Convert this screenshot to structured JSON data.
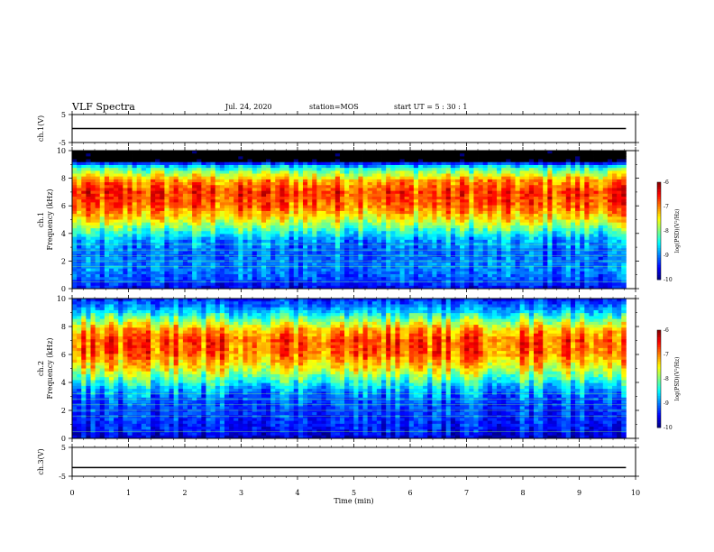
{
  "header": {
    "title": "VLF Spectra",
    "date": "Jul. 24, 2020",
    "station": "station=MOS",
    "start": "start UT =  5 : 30 : 1"
  },
  "chart_data": [
    {
      "type": "line",
      "name": "ch1-voltage",
      "ylabel": "ch.1(V)",
      "ylim": [
        -5,
        5
      ],
      "yticks": [
        "5",
        "-5"
      ],
      "x": [
        0,
        9.83
      ],
      "values": [
        0,
        0
      ],
      "xlim": [
        0,
        10
      ]
    },
    {
      "type": "heatmap",
      "name": "ch1-spectrogram",
      "ylabel": "ch.1\nFrequency (kHz)",
      "ylim": [
        0,
        10
      ],
      "yticks": [
        "0",
        "2",
        "4",
        "6",
        "8",
        "10"
      ],
      "xlim": [
        0,
        10
      ],
      "data_end_min": 9.83,
      "colorbar": {
        "label": "log(PSD)(V²/Hz)",
        "ticks": [
          "-6",
          "-7",
          "-8",
          "-9",
          "-10"
        ],
        "range": [
          -10,
          -6
        ]
      },
      "band_profile": [
        {
          "f": 0.0,
          "v": -9.6
        },
        {
          "f": 0.6,
          "v": -9.2
        },
        {
          "f": 1.5,
          "v": -9.0
        },
        {
          "f": 2.5,
          "v": -9.1
        },
        {
          "f": 3.5,
          "v": -8.9
        },
        {
          "f": 4.2,
          "v": -8.3
        },
        {
          "f": 5.0,
          "v": -7.5
        },
        {
          "f": 6.0,
          "v": -6.9
        },
        {
          "f": 7.0,
          "v": -6.7
        },
        {
          "f": 7.8,
          "v": -7.1
        },
        {
          "f": 8.5,
          "v": -8.0
        },
        {
          "f": 9.0,
          "v": -8.9
        },
        {
          "f": 9.3,
          "v": -11.0
        },
        {
          "f": 10.0,
          "v": -11.0
        }
      ]
    },
    {
      "type": "heatmap",
      "name": "ch2-spectrogram",
      "ylabel": "ch.2\nFrequency (kHz)",
      "ylim": [
        0,
        10
      ],
      "yticks": [
        "0",
        "2",
        "4",
        "6",
        "8",
        "10"
      ],
      "xlim": [
        0,
        10
      ],
      "data_end_min": 9.83,
      "colorbar": {
        "label": "log(PSD)(V²/Hz)",
        "ticks": [
          "-6",
          "-7",
          "-8",
          "-9",
          "-10"
        ],
        "range": [
          -10,
          -6
        ]
      },
      "band_profile": [
        {
          "f": 0.0,
          "v": -9.7
        },
        {
          "f": 0.6,
          "v": -9.4
        },
        {
          "f": 1.5,
          "v": -9.3
        },
        {
          "f": 2.5,
          "v": -9.2
        },
        {
          "f": 3.5,
          "v": -8.8
        },
        {
          "f": 4.2,
          "v": -8.2
        },
        {
          "f": 5.0,
          "v": -7.5
        },
        {
          "f": 6.0,
          "v": -6.9
        },
        {
          "f": 7.0,
          "v": -6.8
        },
        {
          "f": 7.8,
          "v": -7.2
        },
        {
          "f": 8.5,
          "v": -8.0
        },
        {
          "f": 9.2,
          "v": -8.8
        },
        {
          "f": 10.0,
          "v": -9.4
        }
      ]
    },
    {
      "type": "line",
      "name": "ch3-voltage",
      "ylabel": "ch.3(V)",
      "ylim": [
        -5,
        5
      ],
      "yticks": [
        "5",
        "-5"
      ],
      "x": [
        0,
        9.83
      ],
      "values": [
        -2.0,
        -2.0
      ],
      "xlim": [
        0,
        10
      ]
    }
  ],
  "xaxis": {
    "label": "Time (min)",
    "ticks": [
      "0",
      "1",
      "2",
      "3",
      "4",
      "5",
      "6",
      "7",
      "8",
      "9",
      "10"
    ]
  },
  "colors": {
    "text": "#000000",
    "background": "#ffffff"
  }
}
